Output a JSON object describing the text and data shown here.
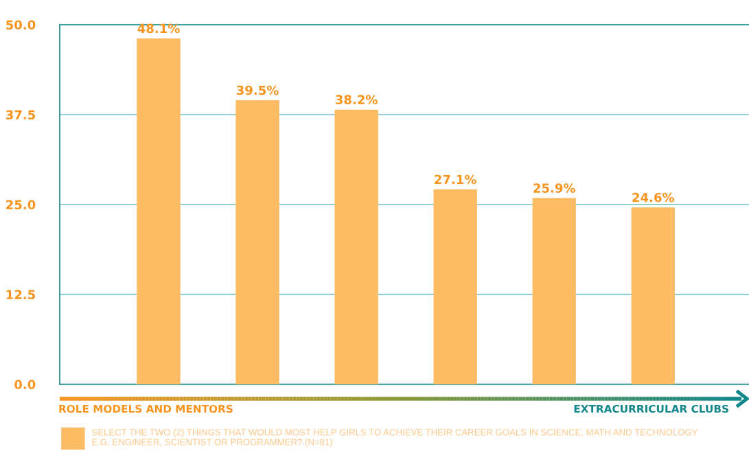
{
  "chart_data": {
    "type": "bar",
    "categories": [
      null,
      null,
      null,
      null,
      null,
      null
    ],
    "series": [
      {
        "name": "SELECT THE TWO (2) THINGS THAT WOULD MOST HELP GIRLS TO ACHIEVE THEIR CAREER GOALS IN SCIENCE, MATH AND TECHNOLOGY\nE.G. ENGINEER, SCIENTIST OR PROGRAMMER? (N=81)",
        "color": "#fdbb63",
        "values": [
          48.1,
          39.5,
          38.2,
          27.1,
          25.9,
          24.6
        ],
        "value_labels": [
          "48.1%",
          "39.5%",
          "38.2%",
          "27.1%",
          "25.9%",
          "24.6%"
        ]
      }
    ],
    "ylim": [
      0,
      50
    ],
    "yticks": [
      {
        "value": 0,
        "label": "0.0"
      },
      {
        "value": 12.5,
        "label": "12.5"
      },
      {
        "value": 25,
        "label": "25.0"
      },
      {
        "value": 37.5,
        "label": "37.5"
      },
      {
        "value": 50,
        "label": "50.0"
      }
    ],
    "grid": "y",
    "legend": "bottom",
    "tick_labels": "y",
    "annotations": [
      "ROLE MODELS AND MENTORS",
      "EXTRACURRICULAR CLUBS"
    ]
  }
}
